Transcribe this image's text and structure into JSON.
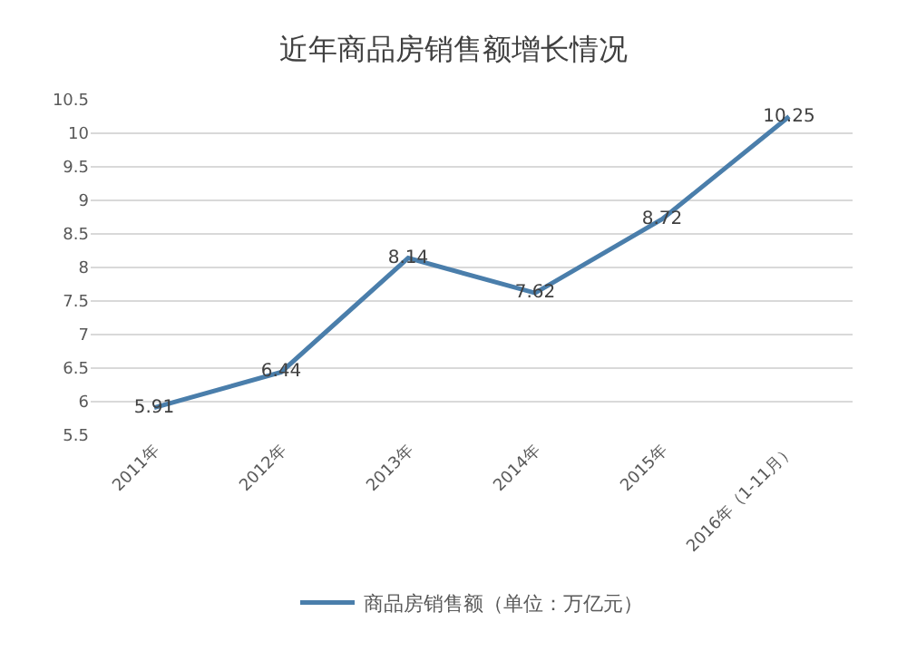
{
  "chart_data": {
    "type": "line",
    "title": "近年商品房销售额增长情况",
    "categories": [
      "2011年",
      "2012年",
      "2013年",
      "2014年",
      "2015年",
      "2016年（1-11月）"
    ],
    "series": [
      {
        "name": "商品房销售额（单位：万亿元）",
        "color": "#4a7eab",
        "values": [
          5.91,
          6.44,
          8.14,
          7.62,
          8.72,
          10.25
        ]
      }
    ],
    "ylim": [
      5.5,
      10.5
    ],
    "yticks": [
      5.5,
      6,
      6.5,
      7,
      7.5,
      8,
      8.5,
      9,
      9.5,
      10,
      10.5
    ],
    "grid": "y",
    "legend": "bottom",
    "data_labels": true,
    "marker": "none",
    "line_style": "solid"
  }
}
